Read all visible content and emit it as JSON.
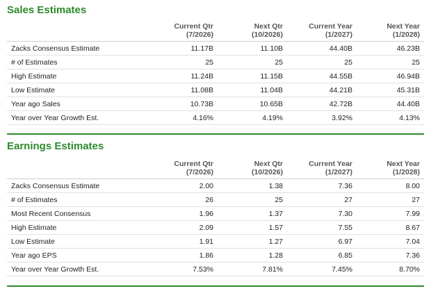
{
  "sales": {
    "title": "Sales Estimates",
    "columns": [
      {
        "line1": "Current Qtr",
        "line2": "(7/2026)"
      },
      {
        "line1": "Next Qtr",
        "line2": "(10/2026)"
      },
      {
        "line1": "Current Year",
        "line2": "(1/2027)"
      },
      {
        "line1": "Next Year",
        "line2": "(1/2028)"
      }
    ],
    "rows": [
      {
        "label": "Zacks Consensus Estimate",
        "values": [
          "11.17B",
          "11.10B",
          "44.40B",
          "46.23B"
        ]
      },
      {
        "label": "# of Estimates",
        "values": [
          "25",
          "25",
          "25",
          "25"
        ]
      },
      {
        "label": "High Estimate",
        "values": [
          "11.24B",
          "11.15B",
          "44.55B",
          "46.94B"
        ]
      },
      {
        "label": "Low Estimate",
        "values": [
          "11.08B",
          "11.04B",
          "44.21B",
          "45.31B"
        ]
      },
      {
        "label": "Year ago Sales",
        "values": [
          "10.73B",
          "10.65B",
          "42.72B",
          "44.40B"
        ]
      },
      {
        "label": "Year over Year Growth Est.",
        "values": [
          "4.16%",
          "4.19%",
          "3.92%",
          "4.13%"
        ]
      }
    ]
  },
  "earnings": {
    "title": "Earnings Estimates",
    "columns": [
      {
        "line1": "Current Qtr",
        "line2": "(7/2026)"
      },
      {
        "line1": "Next Qtr",
        "line2": "(10/2026)"
      },
      {
        "line1": "Current Year",
        "line2": "(1/2027)"
      },
      {
        "line1": "Next Year",
        "line2": "(1/2028)"
      }
    ],
    "rows": [
      {
        "label": "Zacks Consensus Estimate",
        "values": [
          "2.00",
          "1.38",
          "7.36",
          "8.00"
        ]
      },
      {
        "label": "# of Estimates",
        "values": [
          "26",
          "25",
          "27",
          "27"
        ]
      },
      {
        "label": "Most Recent Consensus",
        "values": [
          "1.96",
          "1.37",
          "7.30",
          "7.99"
        ]
      },
      {
        "label": "High Estimate",
        "values": [
          "2.09",
          "1.57",
          "7.55",
          "8.67"
        ]
      },
      {
        "label": "Low Estimate",
        "values": [
          "1.91",
          "1.27",
          "6.97",
          "7.04"
        ]
      },
      {
        "label": "Year ago EPS",
        "values": [
          "1.86",
          "1.28",
          "6.85",
          "7.36"
        ]
      },
      {
        "label": "Year over Year Growth Est.",
        "values": [
          "7.53%",
          "7.81%",
          "7.45%",
          "8.70%"
        ]
      }
    ]
  },
  "colors": {
    "accent_green": "#2d8a2d",
    "text": "#222222",
    "header_text": "#555555"
  }
}
